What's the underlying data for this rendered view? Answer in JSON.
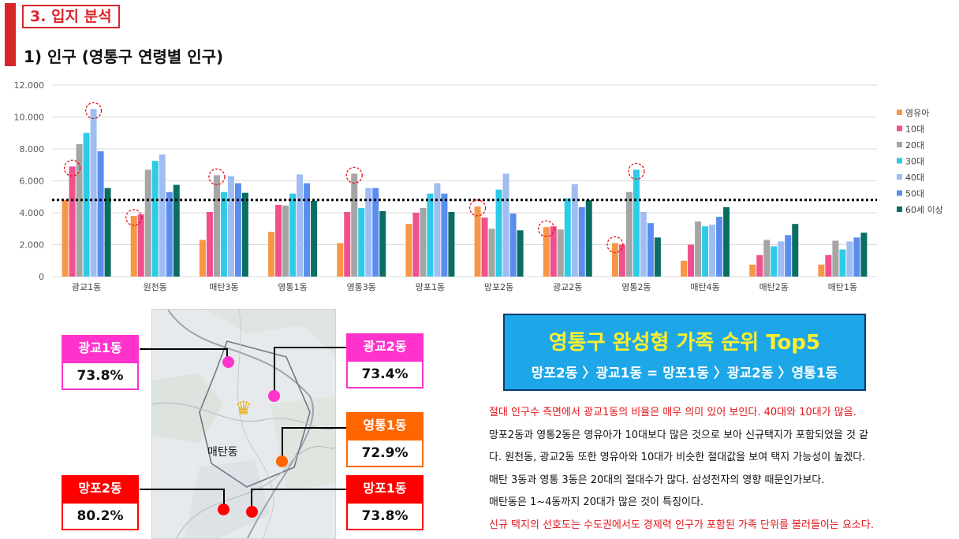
{
  "section": {
    "title": "3. 입지 분석"
  },
  "subtitle": "1) 인구 (영통구 연령별 인구)",
  "chart_data": {
    "type": "bar",
    "categories": [
      "광교1동",
      "원천동",
      "매탄3동",
      "영통1동",
      "영통3동",
      "망포1동",
      "망포2동",
      "광교2동",
      "영통2동",
      "매탄4동",
      "매탄2동",
      "매탄1동"
    ],
    "series": [
      {
        "name": "영유아",
        "color": "#f79646",
        "values": [
          4800,
          3800,
          2300,
          2800,
          2100,
          3300,
          4400,
          3100,
          2100,
          1000,
          750,
          750
        ]
      },
      {
        "name": "10대",
        "color": "#f0508c",
        "values": [
          6900,
          3900,
          4050,
          4500,
          4050,
          4000,
          3700,
          3150,
          2000,
          2000,
          1350,
          1350
        ]
      },
      {
        "name": "20대",
        "color": "#a5a5a5",
        "values": [
          8300,
          6700,
          6350,
          4450,
          6450,
          4300,
          3000,
          2950,
          5300,
          3450,
          2300,
          2250
        ]
      },
      {
        "name": "30대",
        "color": "#2ecbe8",
        "values": [
          9000,
          7250,
          5300,
          5200,
          4300,
          5200,
          5450,
          4900,
          6700,
          3150,
          1900,
          1700
        ]
      },
      {
        "name": "40대",
        "color": "#9fbdf2",
        "values": [
          10500,
          7650,
          6300,
          6400,
          5550,
          5850,
          6450,
          5800,
          4050,
          3250,
          2200,
          2200
        ]
      },
      {
        "name": "50대",
        "color": "#5b8def",
        "values": [
          7850,
          5300,
          5850,
          5850,
          5550,
          5200,
          3950,
          4350,
          3350,
          3750,
          2600,
          2450
        ]
      },
      {
        "name": "60세 이상",
        "color": "#0b6e63",
        "values": [
          5550,
          5750,
          5250,
          4750,
          4100,
          4050,
          2900,
          4800,
          2450,
          4350,
          3300,
          2750
        ]
      }
    ],
    "yticks": [
      "0",
      "2.000",
      "4.000",
      "6.000",
      "8.000",
      "10.000",
      "12.000"
    ],
    "ylim": [
      0,
      12000
    ],
    "reference_line": 4800,
    "highlights": [
      {
        "category": 0,
        "series": 1
      },
      {
        "category": 0,
        "series": 4
      },
      {
        "category": 1,
        "series": 0
      },
      {
        "category": 2,
        "series": 2
      },
      {
        "category": 4,
        "series": 2
      },
      {
        "category": 6,
        "series": 0
      },
      {
        "category": 7,
        "series": 0
      },
      {
        "category": 8,
        "series": 0
      },
      {
        "category": 8,
        "series": 3
      }
    ],
    "legend_position": "right",
    "grid": "horizontal"
  },
  "map": {
    "label": "매탄동"
  },
  "callouts": [
    {
      "name": "광교1동",
      "value": "73.8%",
      "color": "#ff33cc"
    },
    {
      "name": "광교2동",
      "value": "73.4%",
      "color": "#ff33cc"
    },
    {
      "name": "영통1동",
      "value": "72.9%",
      "color": "#ff6600"
    },
    {
      "name": "망포2동",
      "value": "80.2%",
      "color": "#ff0000"
    },
    {
      "name": "망포1동",
      "value": "73.8%",
      "color": "#ff0000"
    }
  ],
  "top5": {
    "title": "영통구 완성형 가족 순위 Top5",
    "ranking": "망포2동 〉광교1동 = 망포1동 〉광교2동 〉영통1동"
  },
  "description": [
    {
      "text": "절대 인구수 측면에서 광교1동의 비율은 매우 의미 있어 보인다. 40대와 10대가 많음.",
      "highlight": true
    },
    {
      "text": "망포2동과 영통2동은 영유아가 10대보다 많은 것으로 보아 신규택지가 포함되었을 것 같",
      "highlight": false
    },
    {
      "text": "다. 원천동, 광교2동 또한 영유아와 10대가 비슷한 절대값을 보여 택지 가능성이 높겠다.",
      "highlight": false
    },
    {
      "text": "매탄 3동과 영통 3동은 20대의 절대수가 많다. 삼성전자의 영향 때문인가보다.",
      "highlight": false
    },
    {
      "text": "매탄동은 1~4동까지 20대가 많은 것이 특징이다.",
      "highlight": false
    },
    {
      "text": "신규 택지의 선호도는 수도권에서도 경제력 인구가 포함된 가족 단위를 불러들이는 요소다.",
      "highlight": true
    }
  ]
}
